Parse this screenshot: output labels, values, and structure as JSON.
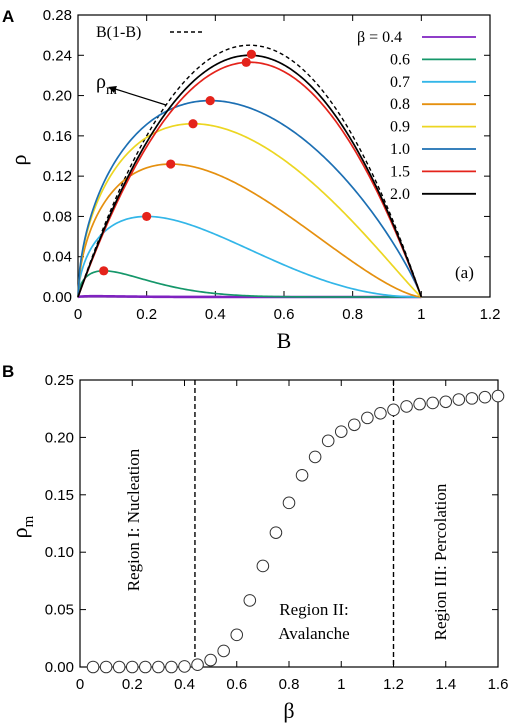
{
  "chart_data": [
    {
      "panel_label": "A",
      "type": "line",
      "xlabel": "B",
      "ylabel": "ρ",
      "xlim": [
        0,
        1.2
      ],
      "ylim": [
        0,
        0.28
      ],
      "xticks": [
        "0",
        "0.2",
        "0.4",
        "0.6",
        "0.8",
        "1",
        "1.2"
      ],
      "yticks": [
        "0.00",
        "0.04",
        "0.08",
        "0.12",
        "0.16",
        "0.20",
        "0.24",
        "0.28"
      ],
      "legend_position": "top-right",
      "reference_curve": {
        "name": "B(1-B)",
        "style": "dashed",
        "color": "#000000"
      },
      "series": [
        {
          "name": "β = 0.4",
          "color": "#7f22c0",
          "peak": [
            0.05,
            0.0008
          ]
        },
        {
          "name": "0.6",
          "color": "#15976a",
          "peak": [
            0.075,
            0.026
          ]
        },
        {
          "name": "0.7",
          "color": "#33b6e8",
          "peak": [
            0.2,
            0.08
          ]
        },
        {
          "name": "0.8",
          "color": "#e5900f",
          "peak": [
            0.27,
            0.132
          ]
        },
        {
          "name": "0.9",
          "color": "#ecd622",
          "peak": [
            0.335,
            0.172
          ]
        },
        {
          "name": "1.0",
          "color": "#1c6fb3",
          "peak": [
            0.385,
            0.195
          ]
        },
        {
          "name": "1.5",
          "color": "#e4231b",
          "peak": [
            0.49,
            0.233
          ]
        },
        {
          "name": "2.0",
          "color": "#000000",
          "peak": [
            0.5,
            0.24
          ]
        }
      ],
      "markers": [
        {
          "x": 0.075,
          "y": 0.026
        },
        {
          "x": 0.2,
          "y": 0.08
        },
        {
          "x": 0.27,
          "y": 0.132
        },
        {
          "x": 0.335,
          "y": 0.172
        },
        {
          "x": 0.385,
          "y": 0.195
        },
        {
          "x": 0.49,
          "y": 0.233
        },
        {
          "x": 0.505,
          "y": 0.241
        }
      ],
      "marker_color": "#e4231b",
      "annotations": {
        "arrow_label": "ρ",
        "arrow_label_sub": "m",
        "corner_label": "(a)"
      }
    },
    {
      "panel_label": "B",
      "type": "scatter",
      "xlabel": "β",
      "ylabel": "ρ",
      "ylabel_sub": "m",
      "xlim": [
        0,
        1.6
      ],
      "ylim": [
        0,
        0.25
      ],
      "xticks": [
        "0",
        "0.2",
        "0.4",
        "0.6",
        "0.8",
        "1",
        "1.2",
        "1.4",
        "1.6"
      ],
      "yticks": [
        "0.00",
        "0.05",
        "0.10",
        "0.15",
        "0.20",
        "0.25"
      ],
      "boundaries": [
        0.44,
        1.2
      ],
      "regions": [
        {
          "lines": [
            "Region I: Nucleation"
          ]
        },
        {
          "lines": [
            "Region II:",
            "Avalanche"
          ]
        },
        {
          "lines": [
            "Region III: Percolation"
          ]
        }
      ],
      "points": [
        [
          0.05,
          0
        ],
        [
          0.1,
          0
        ],
        [
          0.15,
          0
        ],
        [
          0.2,
          0
        ],
        [
          0.25,
          0
        ],
        [
          0.3,
          0
        ],
        [
          0.35,
          0
        ],
        [
          0.4,
          0.0005
        ],
        [
          0.45,
          0.002
        ],
        [
          0.5,
          0.006
        ],
        [
          0.55,
          0.014
        ],
        [
          0.6,
          0.028
        ],
        [
          0.65,
          0.058
        ],
        [
          0.7,
          0.088
        ],
        [
          0.75,
          0.117
        ],
        [
          0.8,
          0.143
        ],
        [
          0.85,
          0.167
        ],
        [
          0.9,
          0.183
        ],
        [
          0.95,
          0.197
        ],
        [
          1.0,
          0.205
        ],
        [
          1.05,
          0.211
        ],
        [
          1.1,
          0.217
        ],
        [
          1.15,
          0.221
        ],
        [
          1.2,
          0.224
        ],
        [
          1.25,
          0.227
        ],
        [
          1.3,
          0.229
        ],
        [
          1.35,
          0.23
        ],
        [
          1.4,
          0.231
        ],
        [
          1.45,
          0.233
        ],
        [
          1.5,
          0.234
        ],
        [
          1.55,
          0.235
        ],
        [
          1.6,
          0.236
        ]
      ]
    }
  ]
}
